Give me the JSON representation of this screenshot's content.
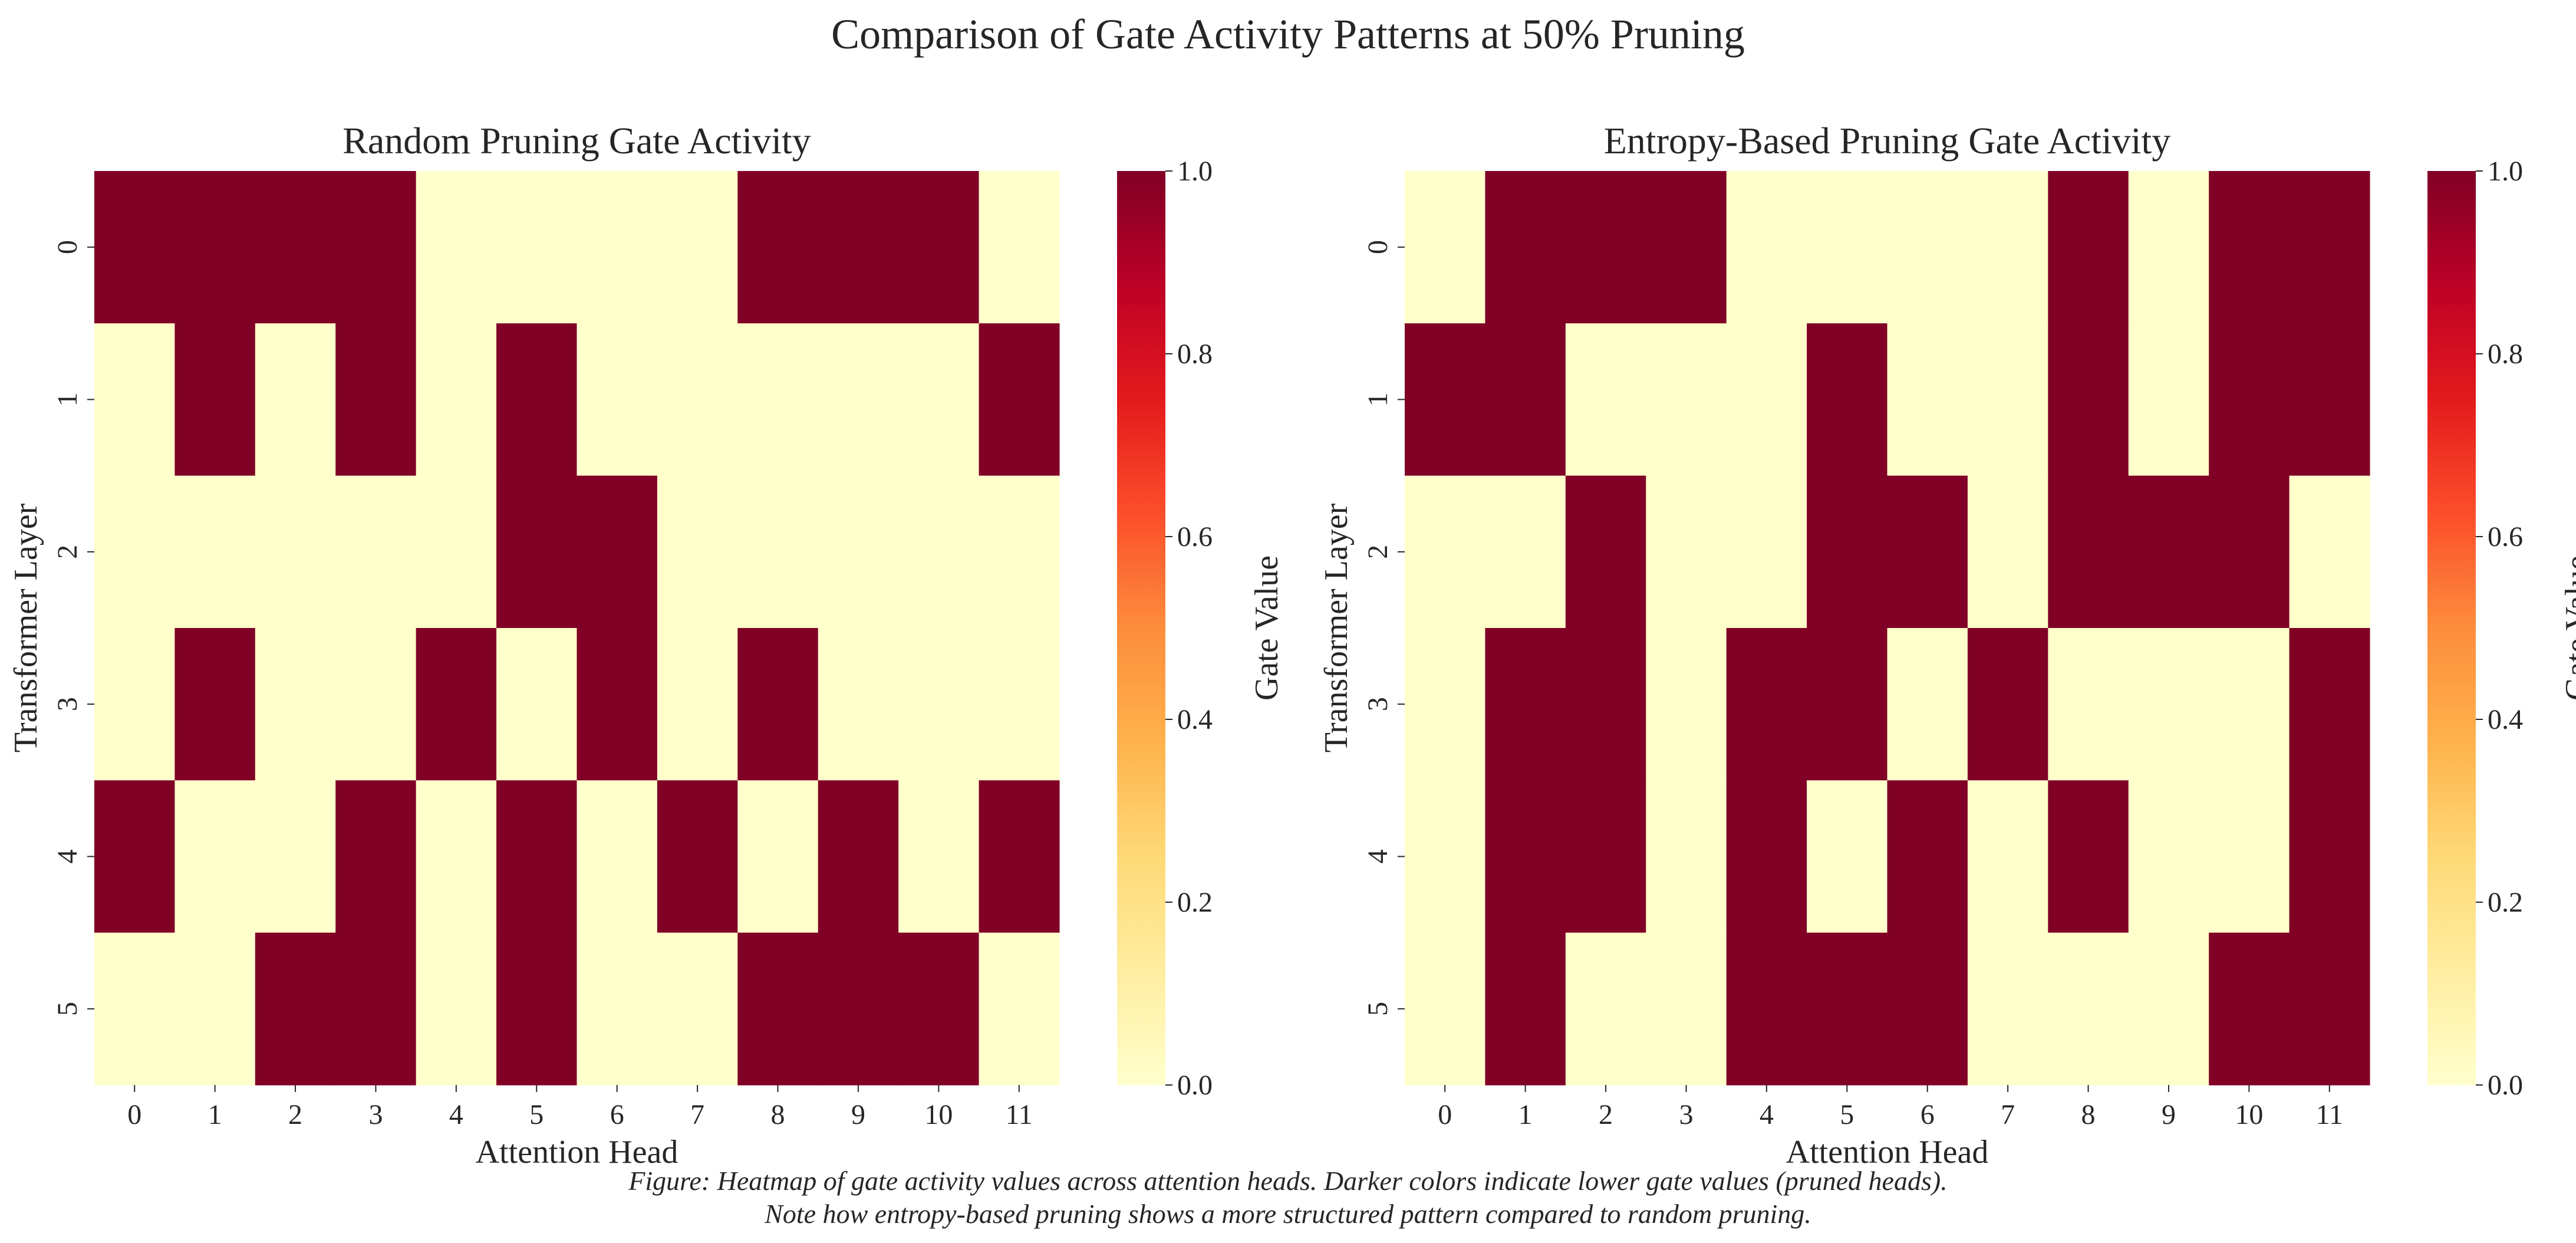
{
  "figure": {
    "title": "Comparison of Gate Activity Patterns at 50% Pruning",
    "caption_lines": [
      "Figure: Heatmap of gate activity values across attention heads. Darker colors indicate lower gate values (pruned heads).",
      "Note how entropy-based pruning shows a more structured pattern compared to random pruning."
    ]
  },
  "chart_data": [
    {
      "type": "heatmap",
      "title": "Random Pruning Gate Activity",
      "xlabel": "Attention Head",
      "ylabel": "Transformer Layer",
      "x_ticks": [
        "0",
        "1",
        "2",
        "3",
        "4",
        "5",
        "6",
        "7",
        "8",
        "9",
        "10",
        "11"
      ],
      "y_ticks": [
        "0",
        "1",
        "2",
        "3",
        "4",
        "5"
      ],
      "values": [
        [
          1,
          1,
          1,
          1,
          0,
          0,
          0,
          0,
          1,
          1,
          1,
          0
        ],
        [
          0,
          1,
          0,
          1,
          0,
          1,
          0,
          0,
          0,
          0,
          0,
          1
        ],
        [
          0,
          0,
          0,
          0,
          0,
          1,
          1,
          0,
          0,
          0,
          0,
          0
        ],
        [
          0,
          1,
          0,
          0,
          1,
          0,
          1,
          0,
          1,
          0,
          0,
          0
        ],
        [
          1,
          0,
          0,
          1,
          0,
          1,
          0,
          1,
          0,
          1,
          0,
          1
        ],
        [
          0,
          0,
          1,
          1,
          0,
          1,
          0,
          0,
          1,
          1,
          1,
          0
        ]
      ],
      "colorbar": {
        "label": "Gate Value",
        "range": [
          0,
          1
        ],
        "ticks": [
          "0.0",
          "0.2",
          "0.4",
          "0.6",
          "0.8",
          "1.0"
        ],
        "colormap": "YlOrRd"
      }
    },
    {
      "type": "heatmap",
      "title": "Entropy-Based Pruning Gate Activity",
      "xlabel": "Attention Head",
      "ylabel": "Transformer Layer",
      "x_ticks": [
        "0",
        "1",
        "2",
        "3",
        "4",
        "5",
        "6",
        "7",
        "8",
        "9",
        "10",
        "11"
      ],
      "y_ticks": [
        "0",
        "1",
        "2",
        "3",
        "4",
        "5"
      ],
      "values": [
        [
          0,
          1,
          1,
          1,
          0,
          0,
          0,
          0,
          1,
          0,
          1,
          1
        ],
        [
          1,
          1,
          0,
          0,
          0,
          1,
          0,
          0,
          1,
          0,
          1,
          1
        ],
        [
          0,
          0,
          1,
          0,
          0,
          1,
          1,
          0,
          1,
          1,
          1,
          0
        ],
        [
          0,
          1,
          1,
          0,
          1,
          1,
          0,
          1,
          0,
          0,
          0,
          1
        ],
        [
          0,
          1,
          1,
          0,
          1,
          0,
          1,
          0,
          1,
          0,
          0,
          1
        ],
        [
          0,
          1,
          0,
          0,
          1,
          1,
          1,
          0,
          0,
          0,
          1,
          1
        ]
      ],
      "colorbar": {
        "label": "Gate Value",
        "range": [
          0,
          1
        ],
        "ticks": [
          "0.0",
          "0.2",
          "0.4",
          "0.6",
          "0.8",
          "1.0"
        ],
        "colormap": "YlOrRd"
      }
    }
  ]
}
